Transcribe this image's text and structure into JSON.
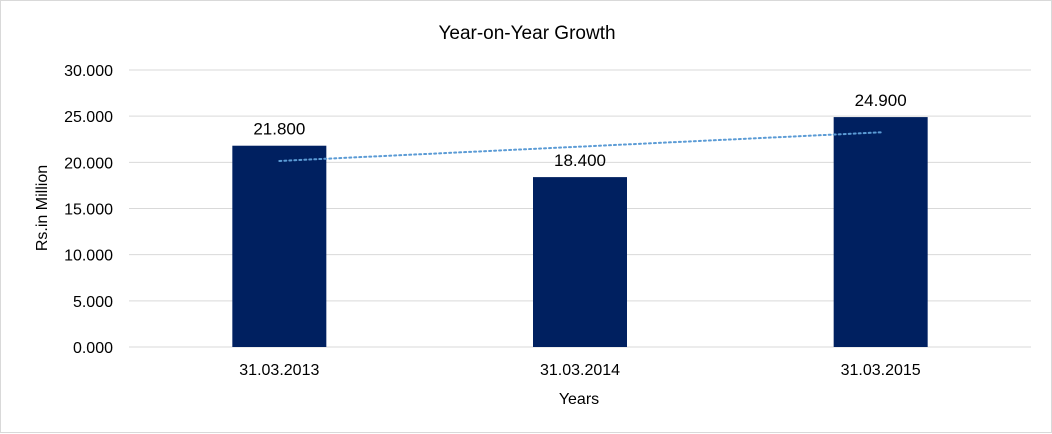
{
  "chart_data": {
    "type": "bar",
    "title": "Year-on-Year Growth",
    "xlabel": "Years",
    "ylabel": "Rs.in Million",
    "categories": [
      "31.03.2013",
      "31.03.2014",
      "31.03.2015"
    ],
    "values": [
      21.8,
      18.4,
      24.9
    ],
    "data_labels": [
      "21.800",
      "18.400",
      "24.900"
    ],
    "ylim": [
      0,
      30
    ],
    "yticks": [
      0,
      5,
      10,
      15,
      20,
      25,
      30
    ],
    "ytick_labels": [
      "0.000",
      "5.000",
      "10.000",
      "15.000",
      "20.000",
      "25.000",
      "30.000"
    ],
    "grid": true,
    "trendline": {
      "type": "linear",
      "style": "dotted",
      "color": "#5b9bd5"
    },
    "bar_color": "#002060",
    "legend": "none"
  }
}
